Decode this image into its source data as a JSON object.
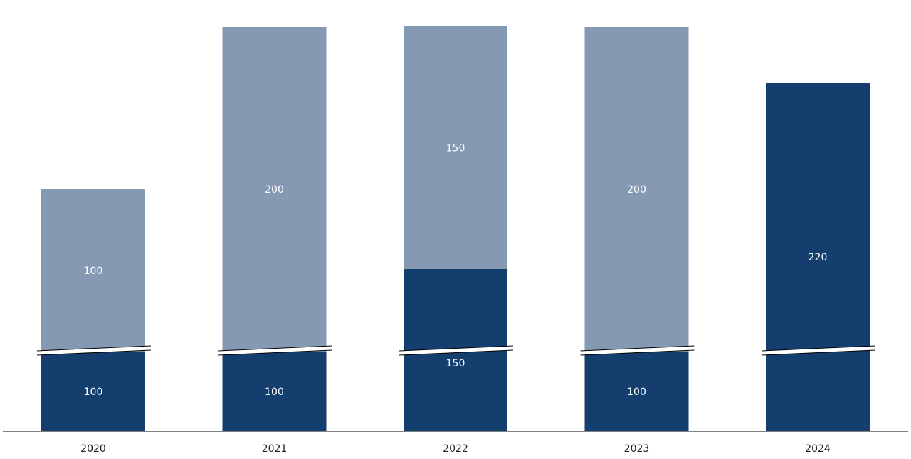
{
  "chart_data": {
    "type": "bar",
    "stacked": true,
    "broken_axis": true,
    "categories": [
      "2020",
      "2021",
      "2022",
      "2023",
      "2024"
    ],
    "series": [
      {
        "values": [
          100,
          100,
          150,
          100,
          220
        ],
        "labels": [
          "100",
          "100",
          "150",
          "100",
          "220"
        ],
        "color": "#133e6e"
      },
      {
        "values": [
          100,
          200,
          150,
          200,
          0
        ],
        "labels": [
          "100",
          "200",
          "150",
          "200",
          ""
        ],
        "color": "#859ab2"
      }
    ],
    "title": "",
    "xlabel": "",
    "ylabel": "",
    "grid": false,
    "legend": "none"
  }
}
